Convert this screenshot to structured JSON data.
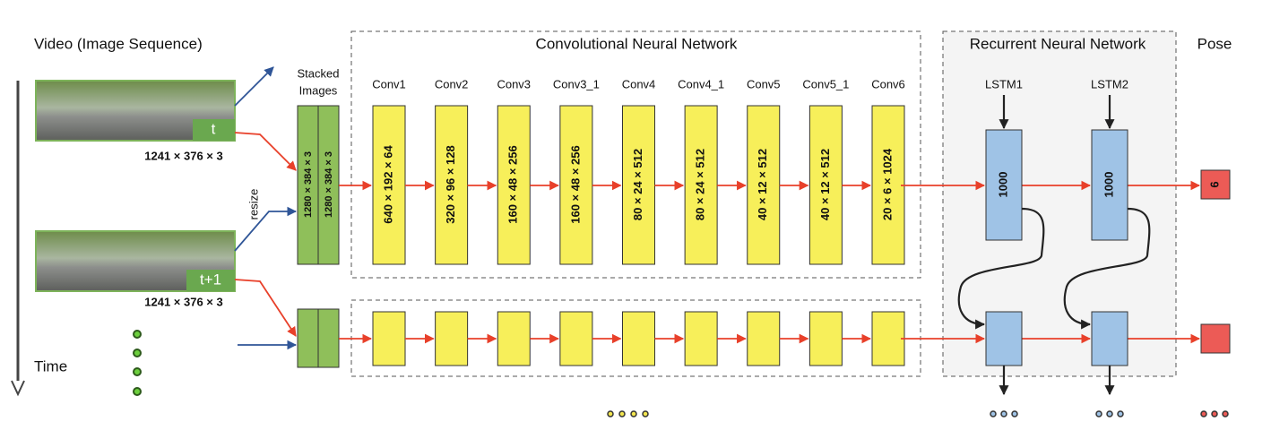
{
  "input": {
    "title": "Video (Image Sequence)",
    "time_label": "Time",
    "resize_label": "resize",
    "frames": [
      {
        "label": "t",
        "size": "1241 × 376 × 3"
      },
      {
        "label": "t+1",
        "size": "1241 × 376 × 3"
      }
    ]
  },
  "stacked": {
    "title_lines": [
      "Stacked",
      "Images"
    ],
    "sizes": [
      "1280 × 384 × 3",
      "1280 × 384 × 3"
    ]
  },
  "cnn": {
    "title": "Convolutional Neural Network",
    "layers": [
      {
        "name": "Conv1",
        "size": "640 × 192 × 64"
      },
      {
        "name": "Conv2",
        "size": "320 × 96 × 128"
      },
      {
        "name": "Conv3",
        "size": "160 × 48 × 256"
      },
      {
        "name": "Conv3_1",
        "size": "160 × 48 × 256"
      },
      {
        "name": "Conv4",
        "size": "80 × 24 × 512"
      },
      {
        "name": "Conv4_1",
        "size": "80 × 24 × 512"
      },
      {
        "name": "Conv5",
        "size": "40 × 12 × 512"
      },
      {
        "name": "Conv5_1",
        "size": "40 × 12 × 512"
      },
      {
        "name": "Conv6",
        "size": "20 × 6 × 1024"
      }
    ]
  },
  "rnn": {
    "title": "Recurrent Neural Network",
    "layers": [
      {
        "name": "LSTM1",
        "units": 1000
      },
      {
        "name": "LSTM2",
        "units": 1000
      }
    ]
  },
  "output": {
    "title": "Pose",
    "size": 6
  }
}
